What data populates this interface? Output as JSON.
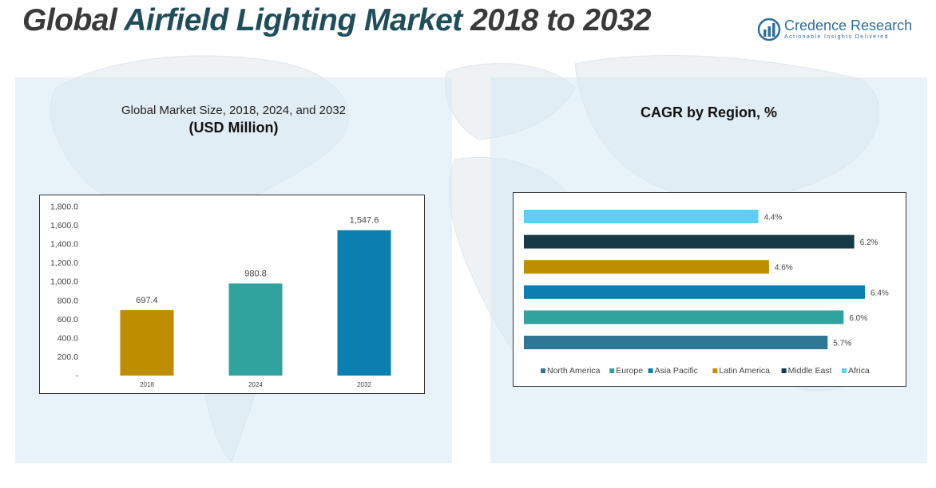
{
  "header": {
    "title_part1": "Global ",
    "title_accent": "Airfield Lighting Market",
    "title_part2": " 2018 to 2032"
  },
  "logo": {
    "name": "Credence Research",
    "tagline": "Actionable Insights Delivered",
    "icon": "bar-chart-circle-icon",
    "color": "#2e6f9e"
  },
  "chart_data": [
    {
      "type": "bar",
      "title": "Global Market Size, 2018, 2024, and 2032",
      "subtitle": "(USD Million)",
      "categories": [
        "2018",
        "2024",
        "2032"
      ],
      "values": [
        697.4,
        980.8,
        1547.6
      ],
      "value_labels": [
        "697.4",
        "980.8",
        "1,547.6"
      ],
      "colors": [
        "#bf8e00",
        "#30a39f",
        "#0a7fb0"
      ],
      "ylim": [
        0,
        1800
      ],
      "yticks": [
        0,
        200,
        400,
        600,
        800,
        1000,
        1200,
        1400,
        1600,
        1800
      ],
      "ytick_labels": [
        "-",
        "200.0",
        "400.0",
        "600.0",
        "800.0",
        "1,000.0",
        "1,200.0",
        "1,400.0",
        "1,600.0",
        "1,800.0"
      ],
      "grid": false,
      "xlabel": "",
      "ylabel": ""
    },
    {
      "type": "bar",
      "orientation": "horizontal",
      "title": "CAGR by Region, %",
      "series": [
        {
          "name": "Africa",
          "value": 4.4,
          "label": "4.4%",
          "color": "#5ccff5"
        },
        {
          "name": "Middle East",
          "value": 6.2,
          "label": "6.2%",
          "color": "#183a47"
        },
        {
          "name": "Latin America",
          "value": 4.6,
          "label": "4.6%",
          "color": "#bf8e00"
        },
        {
          "name": "Asia Pacific",
          "value": 6.4,
          "label": "6.4%",
          "color": "#0a7fb0"
        },
        {
          "name": "Europe",
          "value": 6.0,
          "label": "6.0%",
          "color": "#30a39f"
        },
        {
          "name": "North America",
          "value": 5.7,
          "label": "5.7%",
          "color": "#2f7794"
        }
      ],
      "legend_order": [
        "North America",
        "Europe",
        "Asia Pacific",
        "Latin America",
        "Middle East",
        "Africa"
      ],
      "xlim": [
        0,
        6.4
      ],
      "legend_position": "bottom",
      "grid": false
    }
  ]
}
